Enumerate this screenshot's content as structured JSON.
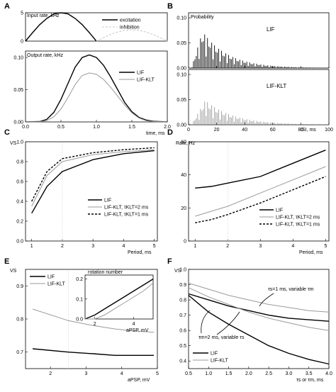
{
  "figure": {
    "panel_letters": [
      "A",
      "B",
      "C",
      "D",
      "E",
      "F"
    ]
  },
  "colors": {
    "black_series": "#000000",
    "gray_series": "#9a9a9a",
    "light_series": "#c8c8c8"
  },
  "chart_data": [
    {
      "id": "A_top",
      "type": "line",
      "ylabel": "Input rate, kHz",
      "xlim": [
        0,
        2
      ],
      "ylim": [
        0,
        5
      ],
      "yticks": [
        "0",
        "5"
      ],
      "legend": "top-right",
      "series": [
        {
          "name": "excitation",
          "color": "#000000",
          "x": [
            0,
            0.1,
            0.2,
            0.3,
            0.4,
            0.5,
            0.6,
            0.7,
            0.8,
            0.9,
            1.0
          ],
          "y": [
            0,
            1.5,
            2.9,
            4.0,
            4.8,
            5.0,
            4.8,
            4.0,
            2.9,
            1.5,
            0
          ]
        },
        {
          "name": "inhibition",
          "color": "#c8c8c8",
          "dash": true,
          "x": [
            1.0,
            1.1,
            1.2,
            1.3,
            1.4,
            1.5,
            1.6,
            1.7,
            1.8,
            1.9,
            2.0
          ],
          "y": [
            0,
            0.6,
            1.2,
            1.6,
            1.9,
            2.0,
            1.9,
            1.6,
            1.2,
            0.6,
            0
          ]
        }
      ]
    },
    {
      "id": "A_bottom",
      "type": "line",
      "ylabel": "Output rate, kHz",
      "xlabel": "time, ms",
      "xlim": [
        0,
        2
      ],
      "ylim": [
        0,
        0.11
      ],
      "xticks": [
        "0.0",
        "0.5",
        "1.0",
        "1.5",
        "2.0"
      ],
      "yticks": [
        "0.00",
        "0.05",
        "0.10"
      ],
      "legend": "right",
      "series": [
        {
          "name": "LIF",
          "color": "#000000",
          "x": [
            0,
            0.2,
            0.3,
            0.4,
            0.5,
            0.6,
            0.7,
            0.8,
            0.9,
            1.0,
            1.1,
            1.2,
            1.3,
            1.4,
            1.5,
            1.6,
            1.7,
            1.8,
            2.0
          ],
          "y": [
            0,
            0.0005,
            0.004,
            0.015,
            0.035,
            0.06,
            0.085,
            0.1,
            0.104,
            0.1,
            0.088,
            0.07,
            0.05,
            0.03,
            0.016,
            0.007,
            0.003,
            0.001,
            0
          ]
        },
        {
          "name": "LIF-KLT",
          "color": "#9a9a9a",
          "x": [
            0,
            0.2,
            0.3,
            0.4,
            0.5,
            0.6,
            0.7,
            0.8,
            0.9,
            1.0,
            1.1,
            1.2,
            1.3,
            1.4,
            1.5,
            1.6,
            1.7,
            1.8,
            2.0
          ],
          "y": [
            0,
            0.0003,
            0.002,
            0.008,
            0.02,
            0.038,
            0.058,
            0.072,
            0.076,
            0.074,
            0.066,
            0.054,
            0.04,
            0.026,
            0.014,
            0.006,
            0.002,
            0.0005,
            0
          ]
        }
      ]
    },
    {
      "id": "B",
      "type": "bar",
      "xlabel": "ISI, ms",
      "ylabel": "Probability",
      "xlim": [
        0,
        100
      ],
      "ylim": [
        0,
        0.11
      ],
      "xticks": [
        "0",
        "20",
        "40",
        "60",
        "80",
        "100"
      ],
      "yticks": [
        "0.00",
        "0.05",
        "0.10"
      ],
      "series": [
        {
          "name": "LIF",
          "color": "#000000",
          "peak": 0.075,
          "peak_x": 10,
          "decay": 18
        },
        {
          "name": "LIF-KLT",
          "color": "#9a9a9a",
          "peak": 0.05,
          "peak_x": 12,
          "decay": 20
        }
      ]
    },
    {
      "id": "C",
      "type": "line",
      "ylabel": "VS",
      "xlabel": "Period, ms",
      "xlim": [
        0.8,
        5.1
      ],
      "ylim": [
        0,
        1.0
      ],
      "xticks": [
        "1",
        "2",
        "3",
        "4",
        "5"
      ],
      "yticks": [
        "0.0",
        "0.2",
        "0.4",
        "0.6",
        "0.8",
        "1.0"
      ],
      "legend": "bottom-right",
      "series": [
        {
          "name": "LIF",
          "color": "#000000",
          "x": [
            1,
            1.5,
            2,
            3,
            4,
            5
          ],
          "y": [
            0.28,
            0.55,
            0.7,
            0.82,
            0.88,
            0.91
          ]
        },
        {
          "name": "LIF-KLT, τKLT=2 ms",
          "color": "#9a9a9a",
          "x": [
            1,
            1.5,
            2,
            3,
            4,
            5
          ],
          "y": [
            0.35,
            0.66,
            0.8,
            0.87,
            0.9,
            0.92
          ]
        },
        {
          "name": "LIF-KLT, τKLT=1 ms",
          "color": "#000000",
          "dash": true,
          "x": [
            1,
            1.5,
            2,
            3,
            4,
            5
          ],
          "y": [
            0.4,
            0.7,
            0.83,
            0.89,
            0.92,
            0.94
          ]
        }
      ]
    },
    {
      "id": "D",
      "type": "line",
      "ylabel": "Rate, Hz",
      "xlabel": "Period, ms",
      "xlim": [
        0.8,
        5.1
      ],
      "ylim": [
        0,
        60
      ],
      "xticks": [
        "1",
        "2",
        "3",
        "4",
        "5"
      ],
      "yticks": [
        "0",
        "20",
        "40",
        "60"
      ],
      "legend": "bottom-right",
      "series": [
        {
          "name": "LIF",
          "color": "#000000",
          "x": [
            1,
            1.5,
            2,
            3,
            4,
            5
          ],
          "y": [
            32,
            33,
            35,
            39,
            47,
            55
          ]
        },
        {
          "name": "LIF-KLT, τKLT=2 ms",
          "color": "#9a9a9a",
          "x": [
            1,
            1.5,
            2,
            3,
            4,
            5
          ],
          "y": [
            15,
            18,
            21,
            29,
            37,
            45
          ]
        },
        {
          "name": "LIF-KLT, τKLT=1 ms",
          "color": "#000000",
          "dash": true,
          "x": [
            1,
            1.5,
            2,
            3,
            4,
            5
          ],
          "y": [
            11,
            13,
            16,
            23,
            31,
            39
          ]
        }
      ]
    },
    {
      "id": "E",
      "type": "line",
      "ylabel": "VS",
      "xlabel": "aPSP, mV",
      "xlim": [
        1.3,
        5
      ],
      "ylim": [
        0.65,
        0.95
      ],
      "xticks": [
        "2",
        "3",
        "4",
        "5"
      ],
      "yticks": [
        "0.7",
        "0.8",
        "0.9"
      ],
      "legend": "top-left",
      "series": [
        {
          "name": "LIF",
          "color": "#000000",
          "x": [
            1.5,
            2.5,
            3.2,
            3.8,
            4.2,
            4.9
          ],
          "y": [
            0.71,
            0.7,
            0.695,
            0.69,
            0.69,
            0.69
          ]
        },
        {
          "name": "LIF-KLT",
          "color": "#9a9a9a",
          "x": [
            1.5,
            2.5,
            3.2,
            3.8,
            4.2,
            4.9
          ],
          "y": [
            0.83,
            0.795,
            0.78,
            0.77,
            0.765,
            0.76
          ]
        }
      ]
    },
    {
      "id": "E_inset",
      "type": "line",
      "title": "rotation number",
      "xlabel": "aPSP, mV",
      "xlim": [
        1.5,
        5
      ],
      "ylim": [
        0,
        0.22
      ],
      "xticks": [
        "2",
        "4"
      ],
      "yticks": [
        "0.0",
        "0.1",
        "0.2"
      ],
      "series": [
        {
          "name": "LIF",
          "color": "#000000",
          "x": [
            1.5,
            2,
            2.5,
            3,
            3.5,
            4,
            4.5,
            5
          ],
          "y": [
            0.0,
            0.02,
            0.05,
            0.08,
            0.11,
            0.14,
            0.17,
            0.2
          ]
        },
        {
          "name": "LIF-KLT",
          "color": "#9a9a9a",
          "x": [
            1.5,
            2,
            2.5,
            3,
            3.5,
            4,
            4.5,
            5
          ],
          "y": [
            0.0,
            0.0,
            0.02,
            0.05,
            0.08,
            0.11,
            0.14,
            0.18
          ]
        }
      ]
    },
    {
      "id": "F",
      "type": "line",
      "ylabel": "VS",
      "xlabel": "τs or τm, ms",
      "xlim": [
        0.5,
        4.0
      ],
      "ylim": [
        0.35,
        1.0
      ],
      "xticks": [
        "0.5",
        "1.0",
        "1.5",
        "2.0",
        "2.5",
        "3.0",
        "3.5",
        "4.0"
      ],
      "yticks": [
        "0.4",
        "0.5",
        "0.6",
        "0.7",
        "0.8",
        "0.9",
        "1.0"
      ],
      "legend": "bottom-left",
      "annotations": [
        "τs=1 ms, variable τm",
        "τm=2 ms, variable τs"
      ],
      "series": [
        {
          "name": "LIF",
          "color": "#000000",
          "x": [
            0.5,
            1,
            1.5,
            2,
            2.5,
            3,
            3.5,
            4
          ],
          "y": [
            0.84,
            0.8,
            0.76,
            0.73,
            0.7,
            0.68,
            0.67,
            0.66
          ]
        },
        {
          "name": "LIF",
          "color": "#000000",
          "x": [
            0.5,
            1,
            1.5,
            2,
            2.5,
            3,
            3.5,
            4
          ],
          "y": [
            0.83,
            0.72,
            0.64,
            0.57,
            0.5,
            0.45,
            0.41,
            0.38
          ]
        },
        {
          "name": "LIF-KLT",
          "color": "#9a9a9a",
          "x": [
            0.5,
            1,
            1.5,
            2,
            2.5,
            3,
            3.5,
            4
          ],
          "y": [
            0.91,
            0.87,
            0.83,
            0.8,
            0.77,
            0.75,
            0.73,
            0.72
          ]
        },
        {
          "name": "LIF-KLT",
          "color": "#9a9a9a",
          "x": [
            0.5,
            1,
            1.5,
            2,
            2.5,
            3,
            3.5,
            4
          ],
          "y": [
            0.88,
            0.82,
            0.77,
            0.72,
            0.68,
            0.65,
            0.62,
            0.6
          ]
        }
      ]
    }
  ]
}
